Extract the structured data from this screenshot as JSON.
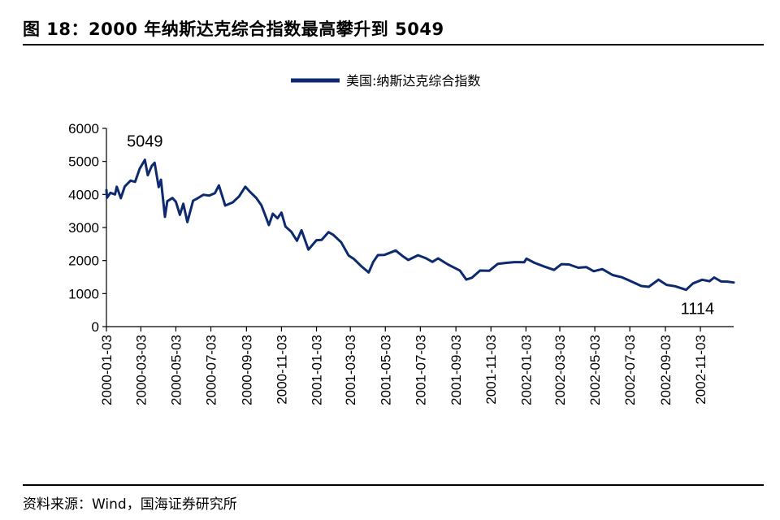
{
  "figure": {
    "title": "图 18：2000 年纳斯达克综合指数最高攀升到 5049",
    "source": "资料来源：Wind，国海证券研究所"
  },
  "colors": {
    "line": "#0d2a6e",
    "axis": "#000000",
    "rule": "#000000"
  },
  "chart_data": {
    "type": "line",
    "legend": "美国:纳斯达克综合指数",
    "legend_position": "top-center",
    "grid": false,
    "ylim": [
      0,
      6000
    ],
    "yticks": [
      0,
      1000,
      2000,
      3000,
      4000,
      5000,
      6000
    ],
    "xlim": [
      "2000-01-03",
      "2002-12-31"
    ],
    "xticks": [
      "2000-01-03",
      "2000-03-03",
      "2000-05-03",
      "2000-07-03",
      "2000-09-03",
      "2000-11-03",
      "2001-01-03",
      "2001-03-03",
      "2001-05-03",
      "2001-07-03",
      "2001-09-03",
      "2001-11-03",
      "2002-01-03",
      "2002-03-03",
      "2002-05-03",
      "2002-07-03",
      "2002-09-03",
      "2002-11-03"
    ],
    "annotations": [
      {
        "text": "5049",
        "x": "2000-03-10",
        "y": 5049
      },
      {
        "text": "1114",
        "x": "2002-10-09",
        "y": 1114
      }
    ],
    "series": [
      {
        "name": "美国:纳斯达克综合指数",
        "points": [
          [
            "2000-01-03",
            4131
          ],
          [
            "2000-01-04",
            3901
          ],
          [
            "2000-01-10",
            4049
          ],
          [
            "2000-01-18",
            4000
          ],
          [
            "2000-01-21",
            4235
          ],
          [
            "2000-01-28",
            3887
          ],
          [
            "2000-02-04",
            4244
          ],
          [
            "2000-02-14",
            4420
          ],
          [
            "2000-02-22",
            4383
          ],
          [
            "2000-03-01",
            4784
          ],
          [
            "2000-03-10",
            5049
          ],
          [
            "2000-03-15",
            4582
          ],
          [
            "2000-03-22",
            4864
          ],
          [
            "2000-03-27",
            4958
          ],
          [
            "2000-04-03",
            4223
          ],
          [
            "2000-04-07",
            4446
          ],
          [
            "2000-04-14",
            3321
          ],
          [
            "2000-04-18",
            3794
          ],
          [
            "2000-04-27",
            3892
          ],
          [
            "2000-05-03",
            3777
          ],
          [
            "2000-05-10",
            3384
          ],
          [
            "2000-05-16",
            3717
          ],
          [
            "2000-05-23",
            3164
          ],
          [
            "2000-06-02",
            3813
          ],
          [
            "2000-06-09",
            3875
          ],
          [
            "2000-06-20",
            3990
          ],
          [
            "2000-06-30",
            3966
          ],
          [
            "2000-07-10",
            4041
          ],
          [
            "2000-07-17",
            4274
          ],
          [
            "2000-07-28",
            3663
          ],
          [
            "2000-08-10",
            3759
          ],
          [
            "2000-08-21",
            3940
          ],
          [
            "2000-09-01",
            4234
          ],
          [
            "2000-09-08",
            4099
          ],
          [
            "2000-09-20",
            3897
          ],
          [
            "2000-09-29",
            3673
          ],
          [
            "2000-10-06",
            3362
          ],
          [
            "2000-10-12",
            3074
          ],
          [
            "2000-10-19",
            3418
          ],
          [
            "2000-10-27",
            3278
          ],
          [
            "2000-11-03",
            3451
          ],
          [
            "2000-11-10",
            3028
          ],
          [
            "2000-11-20",
            2875
          ],
          [
            "2000-11-30",
            2598
          ],
          [
            "2000-12-08",
            2917
          ],
          [
            "2000-12-20",
            2332
          ],
          [
            "2001-01-03",
            2617
          ],
          [
            "2001-01-12",
            2626
          ],
          [
            "2001-01-24",
            2859
          ],
          [
            "2001-02-01",
            2782
          ],
          [
            "2001-02-15",
            2552
          ],
          [
            "2001-02-28",
            2152
          ],
          [
            "2001-03-09",
            2052
          ],
          [
            "2001-03-22",
            1830
          ],
          [
            "2001-04-04",
            1639
          ],
          [
            "2001-04-12",
            1961
          ],
          [
            "2001-04-20",
            2163
          ],
          [
            "2001-05-01",
            2168
          ],
          [
            "2001-05-21",
            2305
          ],
          [
            "2001-06-01",
            2150
          ],
          [
            "2001-06-12",
            2016
          ],
          [
            "2001-06-29",
            2161
          ],
          [
            "2001-07-12",
            2075
          ],
          [
            "2001-07-24",
            1960
          ],
          [
            "2001-08-03",
            2066
          ],
          [
            "2001-08-20",
            1881
          ],
          [
            "2001-09-10",
            1695
          ],
          [
            "2001-09-21",
            1423
          ],
          [
            "2001-10-01",
            1480
          ],
          [
            "2001-10-15",
            1696
          ],
          [
            "2001-10-31",
            1690
          ],
          [
            "2001-11-15",
            1900
          ],
          [
            "2001-11-30",
            1931
          ],
          [
            "2001-12-14",
            1953
          ],
          [
            "2001-12-31",
            1950
          ],
          [
            "2002-01-04",
            2059
          ],
          [
            "2002-01-18",
            1930
          ],
          [
            "2002-02-05",
            1812
          ],
          [
            "2002-02-21",
            1717
          ],
          [
            "2002-03-06",
            1890
          ],
          [
            "2002-03-19",
            1880
          ],
          [
            "2002-04-04",
            1784
          ],
          [
            "2002-04-18",
            1802
          ],
          [
            "2002-05-01",
            1677
          ],
          [
            "2002-05-16",
            1741
          ],
          [
            "2002-06-03",
            1562
          ],
          [
            "2002-06-19",
            1496
          ],
          [
            "2002-07-01",
            1404
          ],
          [
            "2002-07-23",
            1229
          ],
          [
            "2002-08-05",
            1206
          ],
          [
            "2002-08-22",
            1422
          ],
          [
            "2002-09-05",
            1263
          ],
          [
            "2002-09-20",
            1221
          ],
          [
            "2002-10-09",
            1114
          ],
          [
            "2002-10-21",
            1309
          ],
          [
            "2002-11-06",
            1418
          ],
          [
            "2002-11-19",
            1374
          ],
          [
            "2002-11-27",
            1487
          ],
          [
            "2002-12-09",
            1367
          ],
          [
            "2002-12-20",
            1363
          ],
          [
            "2002-12-31",
            1336
          ]
        ]
      }
    ]
  }
}
